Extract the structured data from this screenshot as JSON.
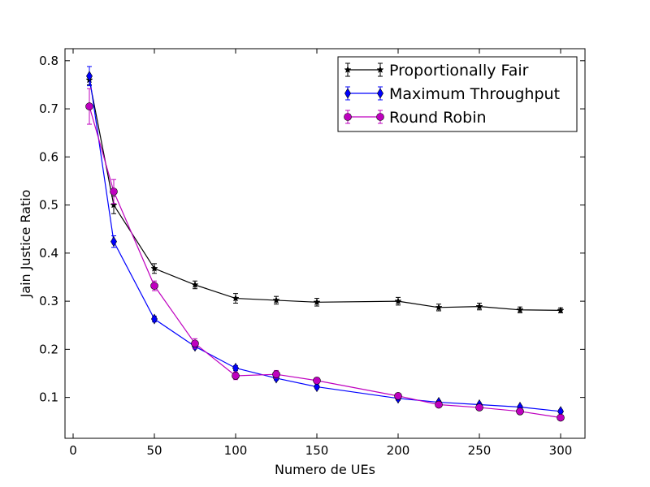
{
  "chart_data": {
    "type": "line",
    "title": "",
    "xlabel": "Numero de UEs",
    "ylabel": "Jain Justice Ratio",
    "xlim": [
      -5,
      315
    ],
    "ylim": [
      0.015,
      0.825
    ],
    "x_ticks": [
      0,
      50,
      100,
      150,
      200,
      250,
      300
    ],
    "y_ticks": [
      0.1,
      0.2,
      0.3,
      0.4,
      0.5,
      0.6,
      0.7,
      0.8
    ],
    "x_tick_labels": [
      "0",
      "50",
      "100",
      "150",
      "200",
      "250",
      "300"
    ],
    "y_tick_labels": [
      "0.1",
      "0.2",
      "0.3",
      "0.4",
      "0.5",
      "0.6",
      "0.7",
      "0.8"
    ],
    "grid": false,
    "legend_position": "top-right",
    "series": [
      {
        "name": "Proportionally Fair",
        "color": "#000000",
        "marker": "star",
        "x": [
          10,
          25,
          50,
          75,
          100,
          125,
          150,
          200,
          225,
          250,
          275,
          300
        ],
        "y": [
          0.76,
          0.5,
          0.368,
          0.334,
          0.306,
          0.302,
          0.298,
          0.3,
          0.287,
          0.289,
          0.282,
          0.281
        ],
        "err": [
          0.01,
          0.018,
          0.01,
          0.008,
          0.01,
          0.008,
          0.008,
          0.008,
          0.007,
          0.007,
          0.006,
          0.005
        ]
      },
      {
        "name": "Maximum Throughput",
        "color": "#0000ff",
        "marker": "diamond",
        "x": [
          10,
          25,
          50,
          75,
          100,
          125,
          150,
          200,
          225,
          250,
          275,
          300
        ],
        "y": [
          0.768,
          0.424,
          0.263,
          0.206,
          0.161,
          0.14,
          0.122,
          0.098,
          0.09,
          0.085,
          0.08,
          0.071
        ],
        "err": [
          0.02,
          0.012,
          0.006,
          0.005,
          0.005,
          0.004,
          0.004,
          0.004,
          0.003,
          0.003,
          0.003,
          0.003
        ]
      },
      {
        "name": "Round Robin",
        "color": "#bf00bf",
        "marker": "circle",
        "x": [
          10,
          25,
          50,
          75,
          100,
          125,
          150,
          200,
          225,
          250,
          275,
          300
        ],
        "y": [
          0.705,
          0.528,
          0.332,
          0.212,
          0.145,
          0.148,
          0.135,
          0.103,
          0.085,
          0.079,
          0.071,
          0.058
        ],
        "err": [
          0.037,
          0.025,
          0.01,
          0.01,
          0.008,
          0.008,
          0.006,
          0.005,
          0.004,
          0.004,
          0.004,
          0.004
        ]
      }
    ]
  }
}
